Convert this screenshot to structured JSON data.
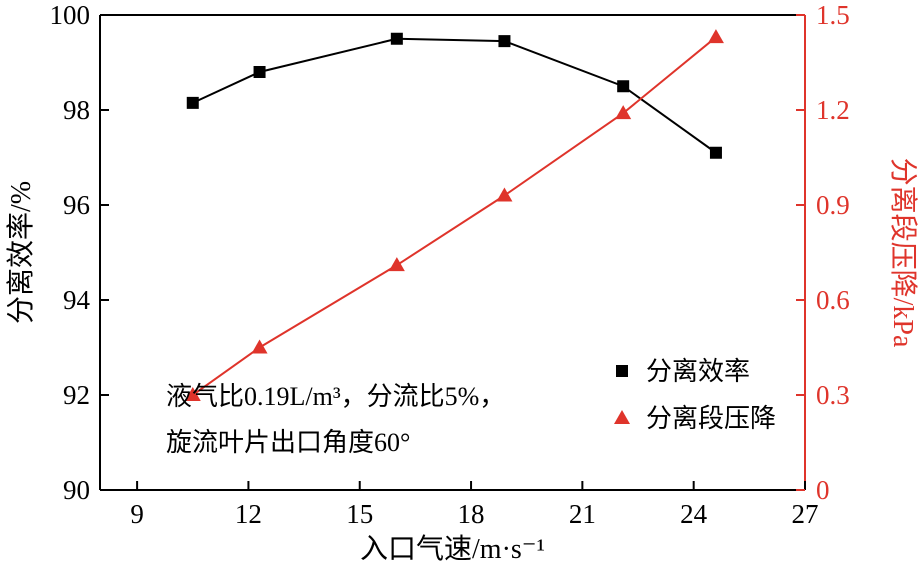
{
  "figure": {
    "background": "#ffffff"
  },
  "chart_data": {
    "type": "line",
    "x": [
      10.5,
      12.3,
      16.0,
      18.9,
      22.1,
      24.6
    ],
    "series": [
      {
        "name": "分离效率",
        "axis": "left",
        "color": "#000000",
        "marker": "square",
        "values": [
          98.15,
          98.8,
          99.5,
          99.45,
          98.5,
          97.1
        ]
      },
      {
        "name": "分离段压降",
        "axis": "right",
        "color": "#df342b",
        "marker": "triangle",
        "values": [
          0.3,
          0.45,
          0.71,
          0.93,
          1.19,
          1.43
        ]
      }
    ],
    "xlabel": "入口气速/m·s⁻¹",
    "ylabel_left": "分离效率/%",
    "ylabel_right": "分离段压降/kPa",
    "xlim": [
      8,
      27
    ],
    "xticks": [
      9,
      12,
      15,
      18,
      21,
      24,
      27
    ],
    "ylim_left": [
      90,
      100
    ],
    "yticks_left": [
      "90",
      "92",
      "94",
      "96",
      "98",
      "100"
    ],
    "ylim_right": [
      0,
      1.5
    ],
    "yticks_right": [
      "0",
      "0.3",
      "0.6",
      "0.9",
      "1.2",
      "1.5"
    ],
    "grid": false,
    "legend_position": "inside-lower-right",
    "annotation_lines": [
      "液气比0.19L/m³，分流比5%，",
      "旋流叶片出口角度60°"
    ],
    "colors": {
      "left_axis": "#000000",
      "right_axis": "#df342b"
    }
  }
}
